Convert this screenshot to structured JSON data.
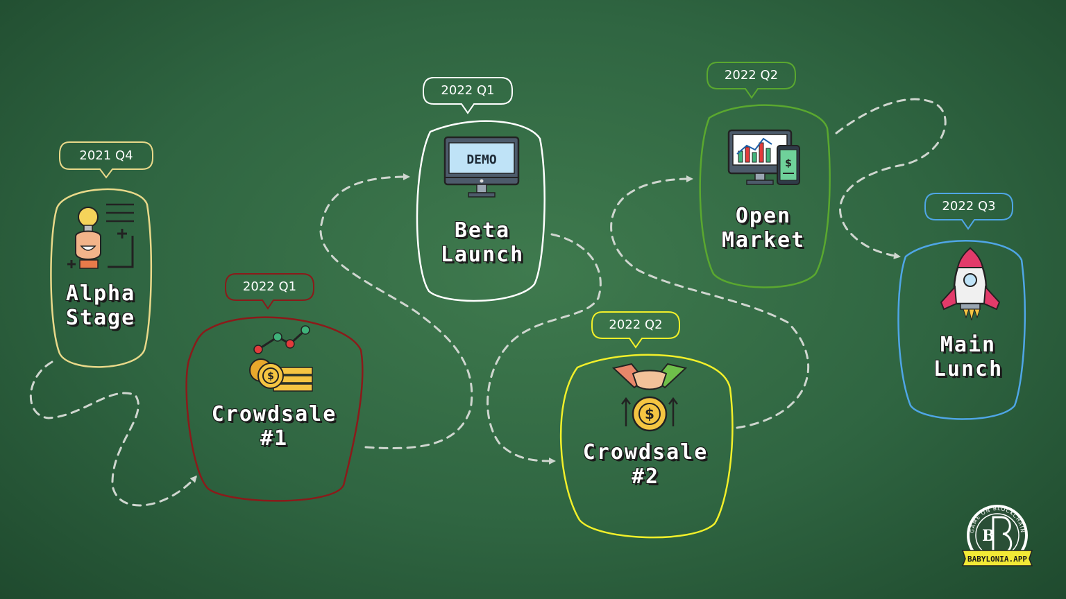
{
  "nodes": [
    {
      "id": "alpha",
      "title_lines": [
        "Alpha",
        "Stage"
      ],
      "quarter": "2021 Q4",
      "color": "#e9d98a",
      "icon": "idea-brain-icon"
    },
    {
      "id": "crowdsale1",
      "title_lines": [
        "Crowdsale",
        "#1"
      ],
      "quarter": "2022 Q1",
      "color": "#8b1a1a",
      "icon": "coins-chart-icon"
    },
    {
      "id": "beta",
      "title_lines": [
        "Beta",
        "Launch"
      ],
      "quarter": "2022 Q1",
      "color": "#ffffff",
      "icon": "demo-monitor-icon",
      "icon_text": "DEMO"
    },
    {
      "id": "crowdsale2",
      "title_lines": [
        "Crowdsale",
        "#2"
      ],
      "quarter": "2022 Q2",
      "color": "#f2f02a",
      "icon": "handshake-coin-icon"
    },
    {
      "id": "open",
      "title_lines": [
        "Open",
        "Market"
      ],
      "quarter": "2022 Q2",
      "color": "#5aa82f",
      "icon": "trading-monitor-icon"
    },
    {
      "id": "main",
      "title_lines": [
        "Main",
        "Lunch"
      ],
      "quarter": "2022 Q3",
      "color": "#4fa6e6",
      "icon": "rocket-icon"
    }
  ],
  "logo": {
    "ring_text": "GAME ON BLOCKCHAIN",
    "monogram": "B",
    "banner": "BABYLONIA.APP"
  },
  "colors": {
    "path": "#cfd6cf",
    "board": "#2f6541"
  }
}
